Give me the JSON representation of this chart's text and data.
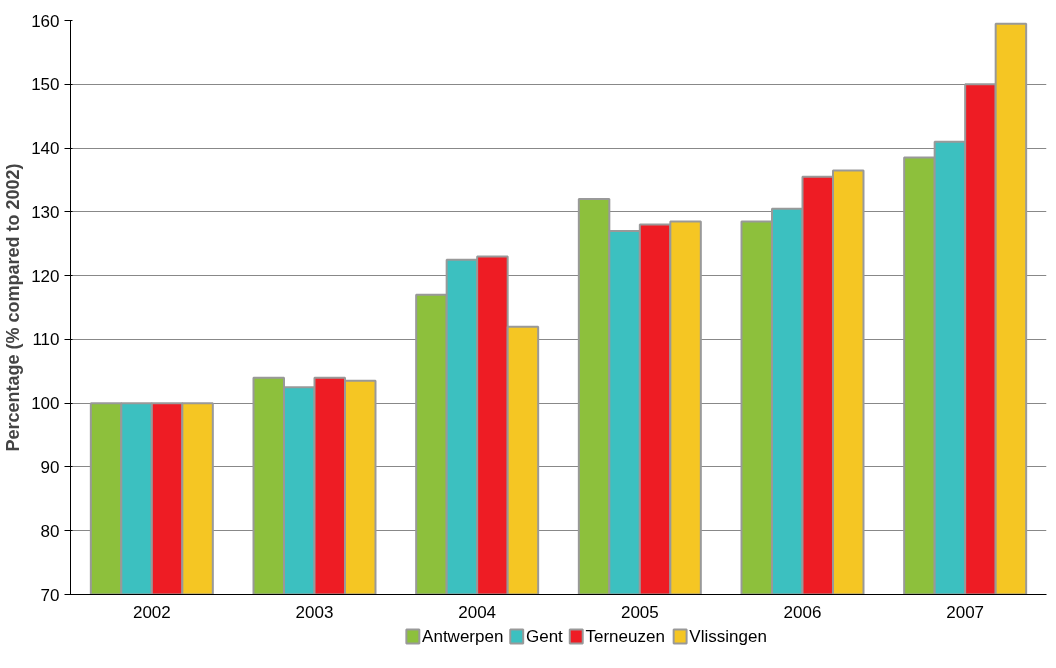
{
  "chart_data": {
    "type": "bar",
    "ylabel": "Percentage (% compared to 2002)",
    "categories": [
      "2002",
      "2003",
      "2004",
      "2005",
      "2006",
      "2007"
    ],
    "series": [
      {
        "name": "Antwerpen",
        "color": "#8dc03c",
        "values": [
          100,
          104,
          117,
          132,
          128.5,
          138.5
        ]
      },
      {
        "name": "Gent",
        "color": "#3cc0c0",
        "values": [
          100,
          102.5,
          122.5,
          127,
          130.5,
          141
        ]
      },
      {
        "name": "Terneuzen",
        "color": "#ee1c24",
        "values": [
          100,
          104,
          123,
          128,
          135.5,
          150
        ]
      },
      {
        "name": "Vlissingen",
        "color": "#f5c623",
        "values": [
          100,
          103.5,
          112,
          128.5,
          136.5,
          159.5
        ]
      }
    ],
    "ylim": [
      70,
      160
    ],
    "yticks": [
      70,
      80,
      90,
      100,
      110,
      120,
      130,
      140,
      150,
      160
    ],
    "grid": "y",
    "legend": "bottom"
  }
}
